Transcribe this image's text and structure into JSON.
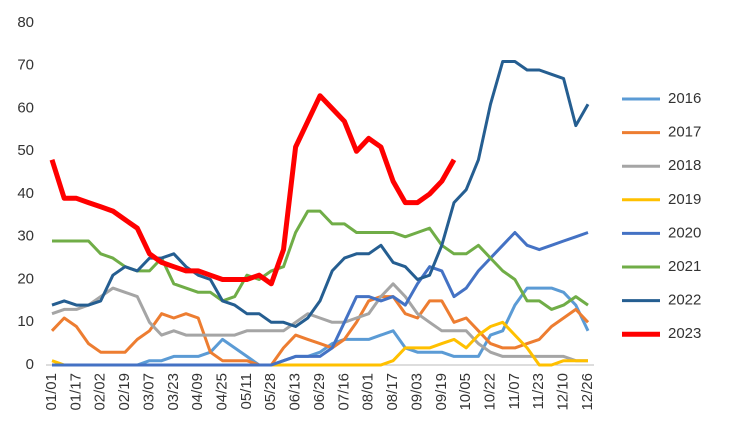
{
  "chart_data": {
    "type": "line",
    "categories": [
      "01/01",
      null,
      "01/17",
      null,
      "02/02",
      null,
      "02/19",
      null,
      "03/07",
      null,
      "03/23",
      null,
      "04/09",
      null,
      "04/25",
      null,
      "05/11",
      null,
      "05/28",
      null,
      "06/13",
      null,
      "06/29",
      null,
      "07/16",
      null,
      "08/01",
      null,
      "08/17",
      null,
      "09/03",
      null,
      "09/19",
      null,
      "10/05",
      null,
      "10/22",
      null,
      "11/07",
      null,
      "11/23",
      null,
      "12/10",
      null,
      "12/26"
    ],
    "ylim": [
      0,
      80
    ],
    "yticks": [
      0,
      10,
      20,
      30,
      40,
      50,
      60,
      70,
      80
    ],
    "grid": false,
    "legend": "right",
    "series": [
      {
        "name": "2016",
        "color": "#5b9bd5",
        "values": [
          0,
          0,
          0,
          0,
          0,
          0,
          0,
          0,
          1,
          1,
          2,
          2,
          2,
          3,
          6,
          4,
          2,
          0,
          0,
          1,
          2,
          2,
          3,
          5,
          6,
          6,
          6,
          7,
          8,
          4,
          3,
          3,
          3,
          2,
          2,
          2,
          7,
          8,
          14,
          18,
          18,
          18,
          17,
          14,
          8
        ]
      },
      {
        "name": "2017",
        "color": "#ed7d31",
        "values": [
          8,
          11,
          9,
          5,
          3,
          3,
          3,
          6,
          8,
          12,
          11,
          12,
          11,
          3,
          1,
          1,
          1,
          0,
          0,
          4,
          7,
          6,
          5,
          4,
          6,
          10,
          15,
          16,
          16,
          12,
          11,
          15,
          15,
          10,
          11,
          8,
          5,
          4,
          4,
          5,
          6,
          9,
          11,
          13,
          10
        ]
      },
      {
        "name": "2018",
        "color": "#a5a5a5",
        "values": [
          12,
          13,
          13,
          14,
          16,
          18,
          17,
          16,
          10,
          7,
          8,
          7,
          7,
          7,
          7,
          7,
          8,
          8,
          8,
          8,
          10,
          12,
          11,
          10,
          10,
          11,
          12,
          16,
          19,
          16,
          12,
          10,
          8,
          8,
          8,
          5,
          3,
          2,
          2,
          2,
          2,
          2,
          2,
          1,
          1
        ]
      },
      {
        "name": "2019",
        "color": "#ffc000",
        "values": [
          1,
          0,
          0,
          0,
          0,
          0,
          0,
          0,
          0,
          0,
          0,
          0,
          0,
          0,
          0,
          0,
          0,
          0,
          0,
          0,
          0,
          0,
          0,
          0,
          0,
          0,
          0,
          0,
          1,
          4,
          4,
          4,
          5,
          6,
          4,
          7,
          9,
          10,
          7,
          4,
          0,
          0,
          1,
          1,
          1
        ]
      },
      {
        "name": "2020",
        "color": "#4472c4",
        "values": [
          0,
          0,
          0,
          0,
          0,
          0,
          0,
          0,
          0,
          0,
          0,
          0,
          0,
          0,
          0,
          0,
          0,
          0,
          0,
          1,
          2,
          2,
          2,
          4,
          10,
          16,
          16,
          15,
          16,
          14,
          19,
          23,
          22,
          16,
          18,
          22,
          25,
          28,
          31,
          28,
          27,
          28,
          29,
          30,
          31
        ]
      },
      {
        "name": "2021",
        "color": "#70ad47",
        "values": [
          29,
          29,
          29,
          29,
          26,
          25,
          23,
          22,
          22,
          25,
          19,
          18,
          17,
          17,
          15,
          16,
          21,
          20,
          22,
          23,
          31,
          36,
          36,
          33,
          33,
          31,
          31,
          31,
          31,
          30,
          31,
          32,
          28,
          26,
          26,
          28,
          25,
          22,
          20,
          15,
          15,
          13,
          14,
          16,
          14
        ]
      },
      {
        "name": "2022",
        "color": "#255e91",
        "values": [
          14,
          15,
          14,
          14,
          15,
          21,
          23,
          22,
          25,
          25,
          26,
          23,
          21,
          20,
          15,
          14,
          12,
          12,
          10,
          10,
          9,
          11,
          15,
          22,
          25,
          26,
          26,
          28,
          24,
          23,
          20,
          21,
          28,
          38,
          41,
          48,
          61,
          71,
          71,
          69,
          69,
          68,
          67,
          56,
          61
        ]
      },
      {
        "name": "2023",
        "color": "#ff0000",
        "values": [
          48,
          39,
          39,
          38,
          37,
          36,
          34,
          32,
          26,
          24,
          23,
          22,
          22,
          21,
          20,
          20,
          20,
          21,
          19,
          27,
          51,
          57,
          63,
          60,
          57,
          50,
          53,
          51,
          43,
          38,
          38,
          40,
          43,
          48,
          null,
          null,
          null,
          null,
          null,
          null,
          null,
          null,
          null,
          null,
          null
        ]
      }
    ]
  }
}
